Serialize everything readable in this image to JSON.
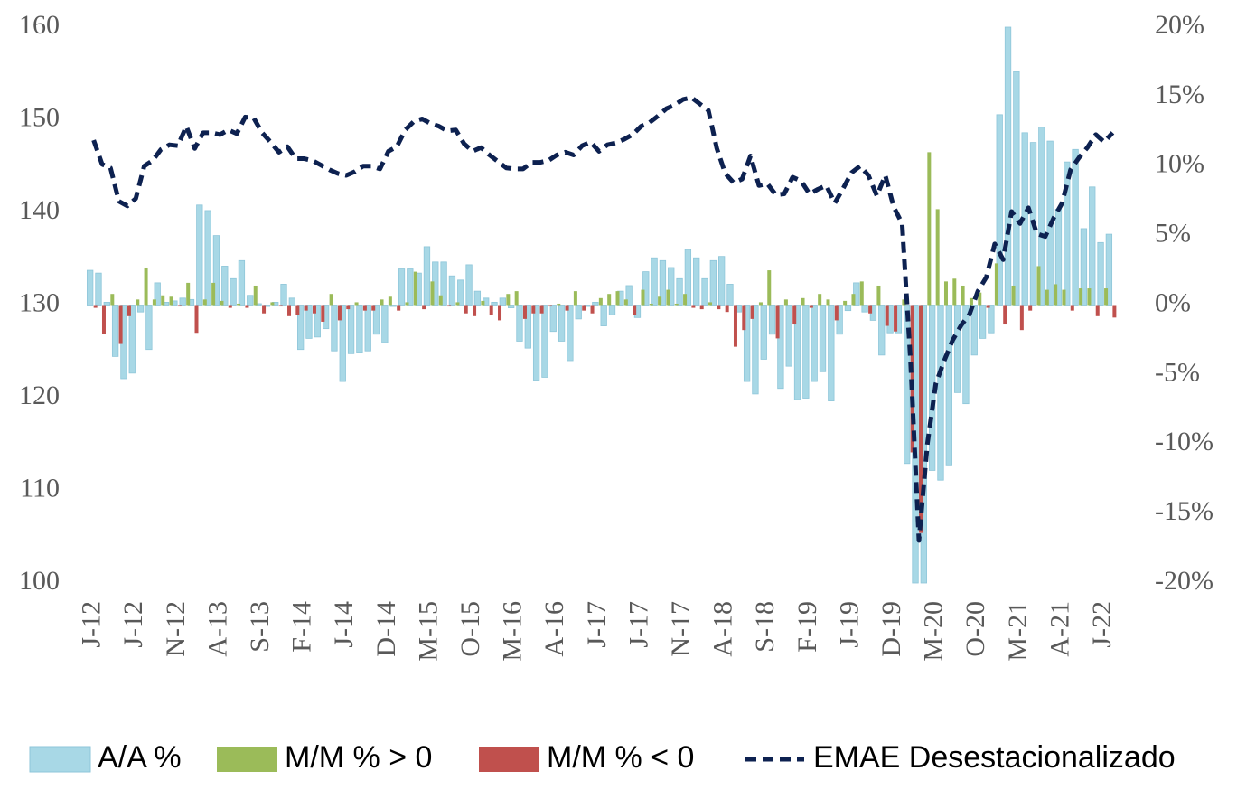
{
  "chart_data": {
    "type": "bar-line",
    "categories": [
      "J-12",
      null,
      null,
      null,
      null,
      "J-12",
      null,
      null,
      null,
      null,
      "N-12",
      null,
      null,
      null,
      null,
      "A-13",
      null,
      null,
      null,
      null,
      "S-13",
      null,
      null,
      null,
      null,
      "F-14",
      null,
      null,
      null,
      null,
      "J-14",
      null,
      null,
      null,
      null,
      "D-14",
      null,
      null,
      null,
      null,
      "M-15",
      null,
      null,
      null,
      null,
      "O-15",
      null,
      null,
      null,
      null,
      "M-16",
      null,
      null,
      null,
      null,
      "A-16",
      null,
      null,
      null,
      null,
      "J-17",
      null,
      null,
      null,
      null,
      "J-17",
      null,
      null,
      null,
      null,
      "N-17",
      null,
      null,
      null,
      null,
      "A-18",
      null,
      null,
      null,
      null,
      "S-18",
      null,
      null,
      null,
      null,
      "F-19",
      null,
      null,
      null,
      null,
      "J-19",
      null,
      null,
      null,
      null,
      "D-19",
      null,
      null,
      null,
      null,
      "M-20",
      null,
      null,
      null,
      null,
      "O-20",
      null,
      null,
      null,
      null,
      "M-21",
      null,
      null,
      null,
      null,
      "A-21",
      null,
      null,
      null,
      null,
      "J-22",
      null
    ],
    "series": [
      {
        "name": "A/A %",
        "kind": "bar",
        "axis": "y2",
        "color": "#a8d8e6",
        "values": [
          2.5,
          2.3,
          0.2,
          -3.7,
          -5.3,
          -4.9,
          -0.5,
          -3.2,
          1.6,
          0.2,
          0.3,
          0.5,
          0.4,
          7.2,
          6.8,
          5.0,
          2.8,
          1.9,
          3.2,
          0.7,
          0.1,
          -0.1,
          0.2,
          1.5,
          0.5,
          -3.2,
          -2.4,
          -2.3,
          -1.7,
          -3.3,
          -5.5,
          -3.5,
          -3.4,
          -3.3,
          -2.1,
          -2.7,
          -0.1,
          2.6,
          2.6,
          2.3,
          4.2,
          3.1,
          3.1,
          2.1,
          1.8,
          2.9,
          1.0,
          0.5,
          0.2,
          0.5,
          -0.2,
          -2.6,
          -3.1,
          -5.4,
          -5.2,
          -1.9,
          -2.6,
          -4.0,
          -1.0,
          -0.1,
          0.2,
          -1.5,
          -0.7,
          1.0,
          1.4,
          -0.9,
          2.4,
          3.4,
          3.2,
          2.7,
          1.9,
          4.0,
          3.4,
          1.9,
          3.2,
          3.5,
          1.5,
          -0.5,
          -5.5,
          -6.4,
          -3.9,
          -2.1,
          -6.0,
          -4.4,
          -6.8,
          -6.7,
          -5.5,
          -4.8,
          -6.9,
          -2.1,
          -0.4,
          1.6,
          -0.5,
          -1.1,
          -3.6,
          -2.0,
          -2.0,
          -11.4,
          -20.0,
          -20.0,
          -11.9,
          -12.6,
          -11.5,
          -6.3,
          -7.1,
          -3.6,
          -2.4,
          -2.0,
          13.7,
          20.0,
          16.8,
          12.4,
          11.7,
          12.8,
          11.8,
          6.9,
          10.3,
          11.2,
          5.5,
          8.5,
          4.5,
          5.1
        ]
      },
      {
        "name": "M/M % > 0",
        "kind": "bar",
        "axis": "y2",
        "color": "#9bbb59",
        "values": [
          null,
          null,
          0.8,
          null,
          null,
          0.4,
          2.7,
          0.4,
          0.7,
          0.6,
          null,
          1.6,
          null,
          0.4,
          1.6,
          0.3,
          null,
          0.1,
          null,
          1.4,
          null,
          0.2,
          null,
          null,
          null,
          null,
          null,
          null,
          0.8,
          null,
          null,
          0.2,
          null,
          null,
          0.4,
          0.6,
          null,
          0.2,
          2.4,
          null,
          1.7,
          0.7,
          null,
          0.2,
          null,
          null,
          0.3,
          null,
          null,
          0.8,
          1.0,
          null,
          null,
          null,
          null,
          0.1,
          null,
          1.0,
          null,
          null,
          0.5,
          0.8,
          1.0,
          0.4,
          null,
          1.1,
          0.1,
          0.6,
          1.1,
          0.1,
          0.8,
          null,
          null,
          0.2,
          null,
          null,
          null,
          null,
          null,
          0.2,
          2.5,
          null,
          0.4,
          null,
          0.5,
          null,
          0.8,
          0.4,
          null,
          0.3,
          0.8,
          1.7,
          null,
          1.4,
          null,
          null,
          0.4,
          null,
          null,
          11.0,
          6.9,
          1.7,
          1.9,
          1.4,
          0.5,
          0.9,
          null,
          3.0,
          null,
          1.4,
          null,
          null,
          2.8,
          1.1,
          1.5,
          1.1,
          null,
          1.2,
          1.2,
          null,
          1.2,
          null
        ]
      },
      {
        "name": "M/M % < 0",
        "kind": "bar",
        "axis": "y2",
        "color": "#c0504d",
        "values": [
          -0.2,
          -2.1,
          null,
          -2.8,
          -0.8,
          null,
          null,
          null,
          null,
          null,
          -0.1,
          null,
          -2.0,
          null,
          null,
          null,
          -0.2,
          null,
          -0.2,
          null,
          -0.6,
          null,
          -0.1,
          -0.8,
          -0.7,
          -0.4,
          -0.6,
          -1.2,
          null,
          -1.1,
          -0.3,
          null,
          -0.4,
          -0.4,
          null,
          null,
          -0.4,
          null,
          null,
          -0.3,
          null,
          null,
          -0.1,
          null,
          -0.6,
          -0.8,
          null,
          -0.7,
          -1.1,
          null,
          null,
          -1.0,
          -0.6,
          -0.6,
          -0.1,
          null,
          -0.4,
          null,
          -0.4,
          -0.6,
          null,
          null,
          null,
          null,
          -0.7,
          null,
          null,
          null,
          null,
          null,
          null,
          -0.2,
          -0.3,
          null,
          -0.3,
          -0.5,
          -3.0,
          -1.8,
          -1.0,
          null,
          null,
          -2.4,
          null,
          -1.4,
          null,
          -0.2,
          null,
          null,
          -1.1,
          null,
          null,
          null,
          -0.6,
          null,
          -1.5,
          -1.9,
          null,
          -10.6,
          -16.4,
          null,
          null,
          null,
          null,
          null,
          null,
          null,
          -0.2,
          null,
          -1.4,
          null,
          -1.8,
          -0.4,
          null,
          null,
          null,
          null,
          -0.4,
          null,
          null,
          -0.8,
          null,
          -0.9
        ]
      },
      {
        "name": "EMAE Desestacionalizado",
        "kind": "line",
        "axis": "y",
        "color": "#0d2150",
        "values": [
          147.8,
          145.2,
          144.8,
          141.2,
          140.7,
          141.5,
          145.0,
          145.6,
          146.8,
          147.3,
          147.2,
          149.3,
          146.9,
          148.6,
          148.6,
          148.4,
          148.9,
          148.5,
          150.3,
          150.2,
          148.6,
          147.6,
          146.5,
          147.1,
          145.8,
          145.8,
          145.6,
          145.1,
          144.6,
          144.2,
          144.0,
          144.4,
          145.0,
          145.0,
          144.7,
          146.6,
          147.1,
          148.9,
          149.8,
          150.1,
          149.6,
          149.3,
          148.8,
          148.9,
          147.4,
          146.6,
          147.0,
          146.2,
          145.5,
          144.8,
          144.7,
          144.7,
          145.4,
          145.4,
          145.6,
          146.2,
          146.5,
          146.2,
          147.2,
          147.6,
          146.6,
          147.3,
          147.5,
          147.9,
          148.4,
          149.3,
          149.7,
          150.4,
          151.2,
          151.6,
          152.2,
          152.4,
          151.7,
          151.0,
          146.9,
          144.2,
          143.2,
          143.6,
          146.1,
          142.9,
          143.1,
          141.9,
          142.0,
          143.8,
          143.4,
          142.0,
          142.5,
          142.9,
          141.0,
          142.6,
          144.3,
          145.0,
          144.0,
          141.8,
          144.0,
          140.6,
          138.8,
          124.0,
          104.6,
          115.0,
          121.5,
          124.0,
          126.2,
          127.8,
          129.0,
          131.5,
          133.0,
          136.6,
          134.9,
          140.1,
          138.8,
          140.5,
          137.7,
          137.4,
          139.4,
          141.0,
          144.6,
          145.9,
          147.0,
          148.4,
          147.6,
          148.6
        ]
      }
    ],
    "ylim": [
      100,
      160
    ],
    "yticks": [
      100,
      110,
      120,
      130,
      140,
      150,
      160
    ],
    "y2lim": [
      -20,
      20
    ],
    "y2ticks": [
      {
        "value": -20,
        "label": "-20%"
      },
      {
        "value": -15,
        "label": "-15%"
      },
      {
        "value": -10,
        "label": "-10%"
      },
      {
        "value": -5,
        "label": "-5%"
      },
      {
        "value": 0,
        "label": "0%"
      },
      {
        "value": 5,
        "label": "5%"
      },
      {
        "value": 10,
        "label": "10%"
      },
      {
        "value": 15,
        "label": "15%"
      },
      {
        "value": 20,
        "label": "20%"
      }
    ],
    "legend": "bottom"
  }
}
